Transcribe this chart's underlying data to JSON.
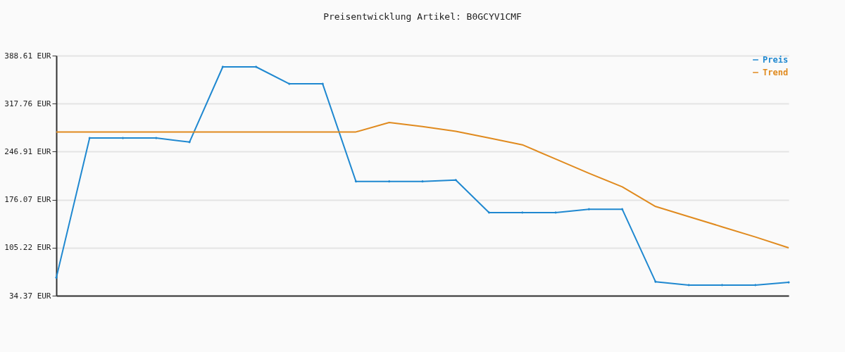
{
  "chart_data": {
    "type": "line",
    "title": "Preisentwicklung Artikel: B0GCYV1CMF",
    "categories": [
      null,
      null,
      null,
      null,
      null,
      null,
      null,
      null,
      null,
      null,
      null,
      null,
      null,
      null,
      null,
      null,
      null,
      null,
      null,
      null,
      null,
      null,
      null
    ],
    "series": [
      {
        "name": "Preis",
        "color": "#1f88d0",
        "marker": "diamond",
        "values": [
          61,
          267,
          267,
          267,
          261,
          372,
          372,
          347,
          347,
          203,
          203,
          203,
          205,
          157,
          157,
          157,
          162,
          162,
          55,
          50,
          50,
          50,
          54
        ]
      },
      {
        "name": "Trend",
        "color": "#e08a1e",
        "marker": "none",
        "values": [
          276,
          276,
          276,
          276,
          276,
          276,
          276,
          276,
          276,
          276,
          290,
          284,
          277,
          267,
          257,
          236,
          215,
          195,
          166,
          151,
          136,
          121,
          105
        ]
      }
    ],
    "ylim": [
      34.37,
      388.61
    ],
    "yticks": [
      {
        "value": 34.37,
        "label": "34.37 EUR"
      },
      {
        "value": 105.22,
        "label": "105.22 EUR"
      },
      {
        "value": 176.07,
        "label": "176.07 EUR"
      },
      {
        "value": 246.91,
        "label": "246.91 EUR"
      },
      {
        "value": 317.76,
        "label": "317.76 EUR"
      },
      {
        "value": 388.61,
        "label": "388.61 EUR"
      }
    ],
    "grid": "y",
    "legend": "top right",
    "tick_labels": "y",
    "line_style": "solid"
  }
}
